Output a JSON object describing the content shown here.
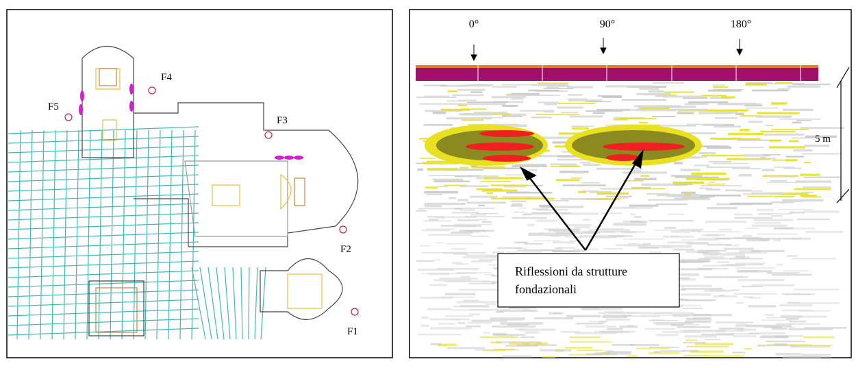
{
  "plan": {
    "labels": [
      "F5",
      "F4",
      "F3",
      "F2",
      "F1"
    ]
  },
  "radargram": {
    "angles": [
      "0°",
      "90°",
      "180°"
    ],
    "scale": "5 m",
    "annotation": [
      "Riflessioni da strutture",
      "fondazionali"
    ]
  }
}
